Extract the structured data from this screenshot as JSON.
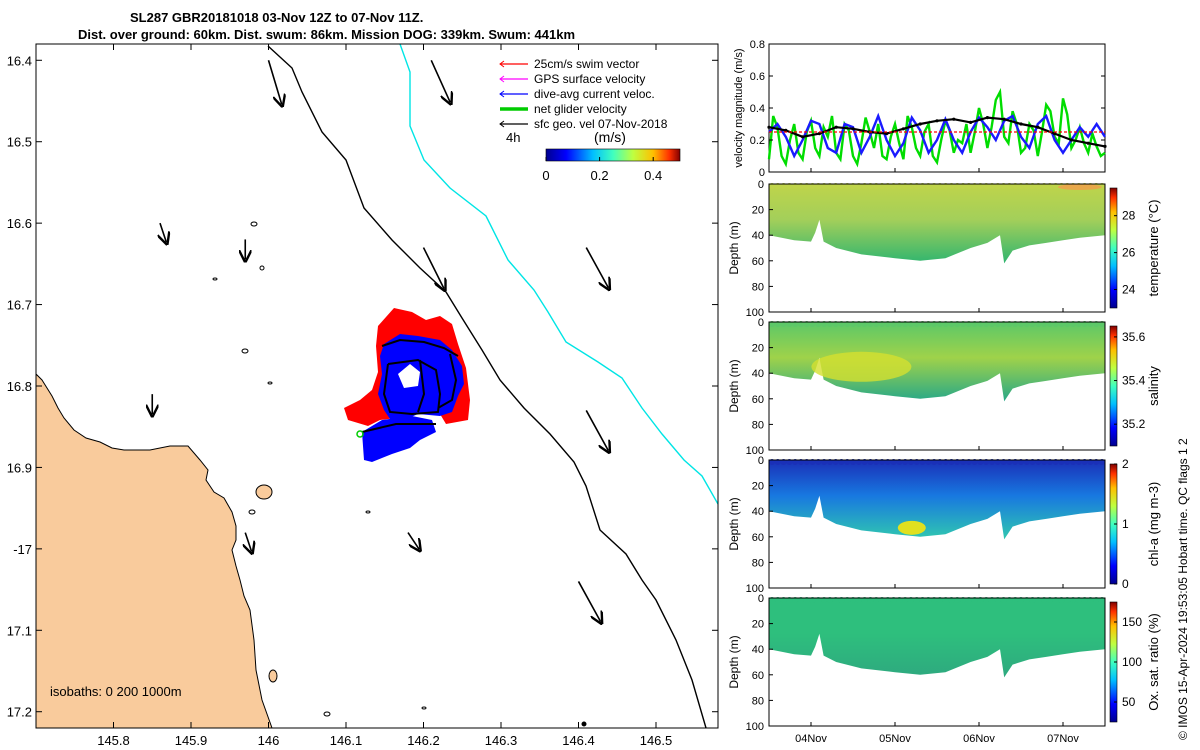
{
  "title": {
    "line1": "SL287 GBR20181018 03-Nov 12Z to 07-Nov 11Z.",
    "line2": "Dist. over ground: 60km. Dist. swum: 86km. Mission DOG: 339km. Swum: 441km"
  },
  "colors": {
    "land": "#F9CB9C",
    "swim": "#ff0000",
    "gps": "#ff00ff",
    "current": "#0000ff",
    "net": "#00cc00",
    "sfc": "#000000",
    "isobath": "#00e5e5"
  },
  "map": {
    "xlim": [
      145.7,
      146.58
    ],
    "ylim_lat_neg": [
      16.38,
      17.22
    ],
    "xticks": [
      145.8,
      145.9,
      146,
      146.1,
      146.2,
      146.3,
      146.4,
      146.5
    ],
    "xtick_labels": [
      "145.8",
      "145.9",
      "146",
      "146.1",
      "146.2",
      "146.3",
      "146.4",
      "146.5"
    ],
    "yticks": [
      16.4,
      16.5,
      16.6,
      16.7,
      16.8,
      16.9,
      17.0,
      17.1,
      17.2
    ],
    "ytick_labels": [
      "16.4",
      "16.5",
      "16.6",
      "16.7",
      "16.8",
      "16.9",
      "-17",
      "17.1",
      "17.2"
    ],
    "isobaths_label": "isobaths: 0   200  1000m",
    "time_label": "4h",
    "legend": [
      {
        "label": "25cm/s swim vector",
        "color": "#ff0000",
        "width": 1
      },
      {
        "label": "GPS surface velocity",
        "color": "#ff00ff",
        "width": 1
      },
      {
        "label": "dive-avg current veloc.",
        "color": "#0000ff",
        "width": 1
      },
      {
        "label": "net glider velocity",
        "color": "#00cc00",
        "width": 3
      },
      {
        "label": "sfc geo. vel 07-Nov-2018",
        "color": "#000000",
        "width": 1
      }
    ],
    "colorbar": {
      "label": "(m/s)",
      "ticks": [
        "0",
        "0.2",
        "0.4"
      ],
      "range": [
        0,
        0.5
      ]
    },
    "sfc_arrows": [
      {
        "lon": 146.0,
        "lat": 16.4,
        "u": 0.3,
        "v": -1.0
      },
      {
        "lon": 146.21,
        "lat": 16.4,
        "u": 0.45,
        "v": -1.0
      },
      {
        "lon": 146.2,
        "lat": 16.63,
        "u": 0.5,
        "v": -1.0
      },
      {
        "lon": 146.41,
        "lat": 16.63,
        "u": 0.55,
        "v": -1.0
      },
      {
        "lon": 146.41,
        "lat": 16.83,
        "u": 0.55,
        "v": -1.0
      },
      {
        "lon": 146.4,
        "lat": 17.04,
        "u": 0.55,
        "v": -1.0
      },
      {
        "lon": 145.97,
        "lat": 16.62,
        "u": 0.0,
        "v": -0.3
      },
      {
        "lon": 145.97,
        "lat": 16.98,
        "u": 0.1,
        "v": -0.3
      },
      {
        "lon": 146.18,
        "lat": 16.98,
        "u": 0.2,
        "v": -0.3
      },
      {
        "lon": 145.86,
        "lat": 16.6,
        "u": 0.1,
        "v": -0.3
      },
      {
        "lon": 145.85,
        "lat": 16.81,
        "u": 0.0,
        "v": -0.2
      }
    ]
  },
  "chart_data": [
    {
      "type": "line",
      "title": "",
      "xlabel": "",
      "ylabel": "velocity magnitude (m/s)",
      "ylim": [
        0,
        0.8
      ],
      "yticks": [
        0,
        0.2,
        0.4,
        0.6,
        0.8
      ],
      "ytick_labels": [
        "0",
        "0.2",
        "0.4",
        "0.6",
        "0.8"
      ],
      "xlim_days": [
        3.5,
        7.5
      ],
      "series": [
        {
          "name": "net glider velocity",
          "color": "#00dd00",
          "x": [
            3.5,
            3.55,
            3.6,
            3.65,
            3.7,
            3.75,
            3.8,
            3.85,
            3.9,
            3.95,
            4.0,
            4.05,
            4.1,
            4.15,
            4.2,
            4.25,
            4.3,
            4.35,
            4.4,
            4.45,
            4.5,
            4.55,
            4.6,
            4.65,
            4.7,
            4.75,
            4.8,
            4.85,
            4.9,
            4.95,
            5.0,
            5.05,
            5.1,
            5.15,
            5.2,
            5.25,
            5.3,
            5.35,
            5.4,
            5.45,
            5.5,
            5.55,
            5.6,
            5.65,
            5.7,
            5.75,
            5.8,
            5.85,
            5.9,
            5.95,
            6.0,
            6.05,
            6.1,
            6.15,
            6.2,
            6.25,
            6.3,
            6.35,
            6.4,
            6.45,
            6.5,
            6.55,
            6.6,
            6.65,
            6.7,
            6.75,
            6.8,
            6.85,
            6.9,
            6.95,
            7.0,
            7.05,
            7.1,
            7.15,
            7.2,
            7.25,
            7.3,
            7.35,
            7.4,
            7.45,
            7.5
          ],
          "values": [
            0.08,
            0.35,
            0.28,
            0.1,
            0.05,
            0.2,
            0.3,
            0.12,
            0.08,
            0.25,
            0.32,
            0.15,
            0.1,
            0.28,
            0.22,
            0.35,
            0.12,
            0.08,
            0.3,
            0.26,
            0.1,
            0.05,
            0.18,
            0.34,
            0.25,
            0.15,
            0.3,
            0.1,
            0.08,
            0.22,
            0.3,
            0.18,
            0.08,
            0.35,
            0.28,
            0.15,
            0.1,
            0.25,
            0.3,
            0.1,
            0.06,
            0.2,
            0.32,
            0.26,
            0.12,
            0.2,
            0.18,
            0.3,
            0.12,
            0.25,
            0.4,
            0.3,
            0.15,
            0.28,
            0.45,
            0.5,
            0.22,
            0.18,
            0.38,
            0.3,
            0.12,
            0.15,
            0.3,
            0.26,
            0.1,
            0.25,
            0.42,
            0.38,
            0.22,
            0.18,
            0.46,
            0.36,
            0.15,
            0.2,
            0.28,
            0.18,
            0.12,
            0.24,
            0.16,
            0.1,
            0.12
          ]
        },
        {
          "name": "dive-avg current veloc.",
          "color": "#1a1aff",
          "x": [
            3.5,
            3.6,
            3.7,
            3.8,
            3.9,
            4.0,
            4.1,
            4.2,
            4.3,
            4.4,
            4.5,
            4.6,
            4.7,
            4.8,
            4.9,
            5.0,
            5.1,
            5.2,
            5.3,
            5.4,
            5.5,
            5.6,
            5.7,
            5.8,
            5.9,
            6.0,
            6.1,
            6.2,
            6.3,
            6.4,
            6.5,
            6.6,
            6.7,
            6.8,
            6.9,
            7.0,
            7.1,
            7.2,
            7.3,
            7.4,
            7.5
          ],
          "values": [
            0.25,
            0.3,
            0.22,
            0.1,
            0.2,
            0.32,
            0.3,
            0.15,
            0.12,
            0.3,
            0.28,
            0.12,
            0.22,
            0.35,
            0.2,
            0.1,
            0.18,
            0.34,
            0.26,
            0.12,
            0.2,
            0.33,
            0.2,
            0.12,
            0.25,
            0.34,
            0.28,
            0.2,
            0.32,
            0.35,
            0.22,
            0.15,
            0.3,
            0.35,
            0.2,
            0.12,
            0.2,
            0.28,
            0.22,
            0.3,
            0.22
          ]
        },
        {
          "name": "sfc geo. vel",
          "color": "#000000",
          "x": [
            3.5,
            3.7,
            3.9,
            4.1,
            4.3,
            4.5,
            4.7,
            4.9,
            5.1,
            5.3,
            5.5,
            5.7,
            5.9,
            6.1,
            6.3,
            6.5,
            6.7,
            6.9,
            7.1,
            7.3,
            7.5
          ],
          "values": [
            0.28,
            0.26,
            0.22,
            0.24,
            0.28,
            0.27,
            0.25,
            0.24,
            0.27,
            0.3,
            0.32,
            0.33,
            0.31,
            0.34,
            0.33,
            0.3,
            0.28,
            0.24,
            0.2,
            0.18,
            0.16
          ]
        },
        {
          "name": "swim",
          "color": "#ff0000",
          "x": [
            3.5,
            7.5
          ],
          "values": [
            0.25,
            0.25
          ]
        }
      ]
    },
    {
      "type": "heatmap",
      "ylabel": "Depth (m)",
      "clabel": "temperature (°C)",
      "ylim": [
        0,
        100
      ],
      "yticks": [
        "0",
        "20",
        "40",
        "60",
        "80",
        "100"
      ],
      "cticks": [
        "24",
        "26",
        "28"
      ],
      "crange": [
        23,
        29.5
      ],
      "cmap": "parula"
    },
    {
      "type": "heatmap",
      "ylabel": "Depth (m)",
      "clabel": "salinity",
      "ylim": [
        0,
        100
      ],
      "yticks": [
        "0",
        "20",
        "40",
        "60",
        "80",
        "100"
      ],
      "cticks": [
        "35.2",
        "35.4",
        "35.6"
      ],
      "crange": [
        35.1,
        35.65
      ],
      "cmap": "parula"
    },
    {
      "type": "heatmap",
      "ylabel": "Depth (m)",
      "clabel": "chl-a (mg m-3)",
      "ylim": [
        0,
        100
      ],
      "yticks": [
        "0",
        "20",
        "40",
        "60",
        "80",
        "100"
      ],
      "cticks": [
        "0",
        "1",
        "2"
      ],
      "crange": [
        0,
        2
      ],
      "cmap": "parula"
    },
    {
      "type": "heatmap",
      "ylabel": "Depth (m)",
      "clabel": "Ox. sat. ratio (%)",
      "ylim": [
        0,
        100
      ],
      "yticks": [
        "0",
        "20",
        "40",
        "60",
        "80",
        "100"
      ],
      "cticks": [
        "50",
        "100",
        "150"
      ],
      "crange": [
        25,
        175
      ],
      "cmap": "parula"
    }
  ],
  "time_axis": {
    "ticks": [
      "04Nov",
      "05Nov",
      "06Nov",
      "07Nov"
    ],
    "days": [
      4,
      5,
      6,
      7
    ]
  },
  "credit": "© IMOS 15-Apr-2024 19:53:05 Hobart time. QC flags 1  2"
}
